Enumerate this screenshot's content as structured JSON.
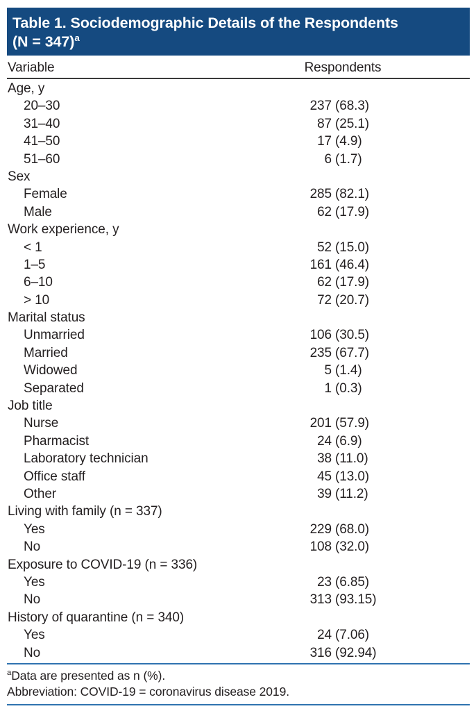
{
  "header": {
    "title_line1": "Table 1. Sociodemographic Details of the Respondents",
    "title_line2": "(N = 347)",
    "title_superscript": "a"
  },
  "columns": {
    "variable": "Variable",
    "respondents": "Respondents"
  },
  "rows": [
    {
      "label": "Age, y",
      "indent": false,
      "value_n": "",
      "value_pct": ""
    },
    {
      "label": "20–30",
      "indent": true,
      "value_n": "237",
      "value_pct": "(68.3)"
    },
    {
      "label": "31–40",
      "indent": true,
      "value_n": "87",
      "value_pct": "(25.1)"
    },
    {
      "label": "41–50",
      "indent": true,
      "value_n": "17",
      "value_pct": "(4.9)"
    },
    {
      "label": "51–60",
      "indent": true,
      "value_n": "6",
      "value_pct": "(1.7)"
    },
    {
      "label": "Sex",
      "indent": false,
      "value_n": "",
      "value_pct": ""
    },
    {
      "label": "Female",
      "indent": true,
      "value_n": "285",
      "value_pct": "(82.1)"
    },
    {
      "label": "Male",
      "indent": true,
      "value_n": "62",
      "value_pct": "(17.9)"
    },
    {
      "label": "Work experience, y",
      "indent": false,
      "value_n": "",
      "value_pct": ""
    },
    {
      "label": "< 1",
      "indent": true,
      "value_n": "52",
      "value_pct": "(15.0)"
    },
    {
      "label": "1–5",
      "indent": true,
      "value_n": "161",
      "value_pct": "(46.4)"
    },
    {
      "label": "6–10",
      "indent": true,
      "value_n": "62",
      "value_pct": "(17.9)"
    },
    {
      "label": "> 10",
      "indent": true,
      "value_n": "72",
      "value_pct": "(20.7)"
    },
    {
      "label": "Marital status",
      "indent": false,
      "value_n": "",
      "value_pct": ""
    },
    {
      "label": "Unmarried",
      "indent": true,
      "value_n": "106",
      "value_pct": "(30.5)"
    },
    {
      "label": "Married",
      "indent": true,
      "value_n": "235",
      "value_pct": "(67.7)"
    },
    {
      "label": "Widowed",
      "indent": true,
      "value_n": "5",
      "value_pct": "(1.4)"
    },
    {
      "label": "Separated",
      "indent": true,
      "value_n": "1",
      "value_pct": "(0.3)"
    },
    {
      "label": "Job title",
      "indent": false,
      "value_n": "",
      "value_pct": ""
    },
    {
      "label": "Nurse",
      "indent": true,
      "value_n": "201",
      "value_pct": "(57.9)"
    },
    {
      "label": "Pharmacist",
      "indent": true,
      "value_n": "24",
      "value_pct": "(6.9)"
    },
    {
      "label": "Laboratory technician",
      "indent": true,
      "value_n": "38",
      "value_pct": "(11.0)"
    },
    {
      "label": "Office staff",
      "indent": true,
      "value_n": "45",
      "value_pct": "(13.0)"
    },
    {
      "label": "Other",
      "indent": true,
      "value_n": "39",
      "value_pct": "(11.2)"
    },
    {
      "label": "Living with family (n = 337)",
      "indent": false,
      "value_n": "",
      "value_pct": ""
    },
    {
      "label": "Yes",
      "indent": true,
      "value_n": "229",
      "value_pct": "(68.0)"
    },
    {
      "label": "No",
      "indent": true,
      "value_n": "108",
      "value_pct": "(32.0)"
    },
    {
      "label": "Exposure to COVID-19 (n = 336)",
      "indent": false,
      "value_n": "",
      "value_pct": ""
    },
    {
      "label": "Yes",
      "indent": true,
      "value_n": "23",
      "value_pct": "(6.85)"
    },
    {
      "label": "No",
      "indent": true,
      "value_n": "313",
      "value_pct": "(93.15)"
    },
    {
      "label": "History of quarantine (n = 340)",
      "indent": false,
      "value_n": "",
      "value_pct": ""
    },
    {
      "label": "Yes",
      "indent": true,
      "value_n": "24",
      "value_pct": "(7.06)"
    },
    {
      "label": "No",
      "indent": true,
      "value_n": "316",
      "value_pct": "(92.94)"
    }
  ],
  "footnotes": {
    "superscript": "a",
    "note1": "Data are presented as n (%).",
    "note2": "Abbreviation: COVID-19 = coronavirus disease 2019."
  },
  "colors": {
    "banner_background": "#154a80",
    "banner_text": "#ffffff",
    "header_rule": "#3a3a3a",
    "footer_rules": "#2f73b0",
    "body_text": "#231f20"
  }
}
